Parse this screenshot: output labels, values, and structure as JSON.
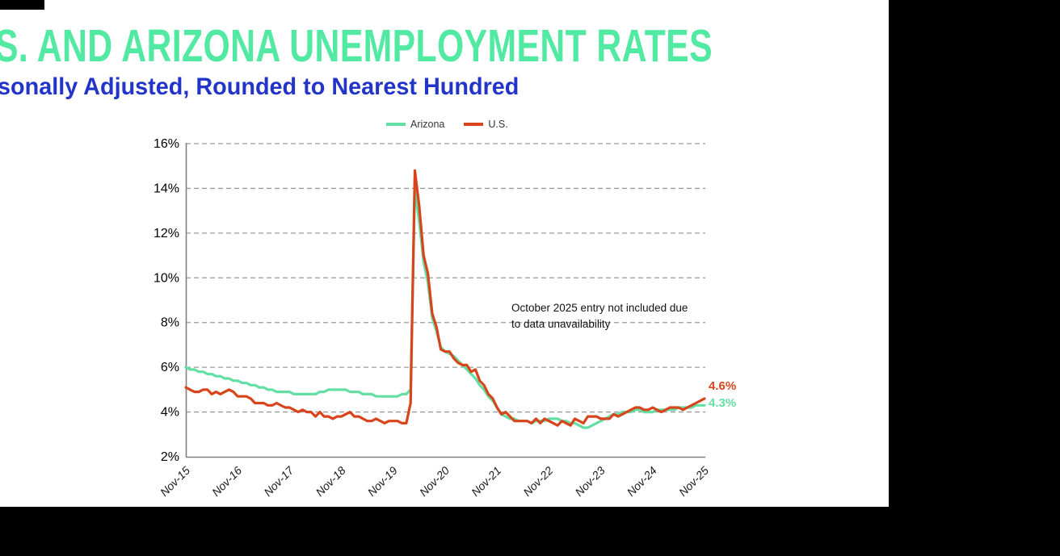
{
  "page": {
    "background": "#000000",
    "content_background": "#ffffff"
  },
  "header": {
    "title": "S. AND ARIZONA UNEMPLOYMENT RATES",
    "title_color": "#52e9a2",
    "subtitle": "sonally Adjusted, Rounded to Nearest Hundred",
    "subtitle_color": "#2334c8"
  },
  "legend": {
    "items": [
      {
        "label": "Arizona",
        "color": "#64dfa4"
      },
      {
        "label": "U.S.",
        "color": "#d8451c"
      }
    ]
  },
  "annotation": {
    "line1": "October 2025 entry not included due",
    "line2": "to data unavailability"
  },
  "chart_data": {
    "type": "line",
    "title": "S. AND ARIZONA UNEMPLOYMENT RATES",
    "subtitle": "sonally Adjusted, Rounded to Nearest Hundred",
    "x_unit": "months since Nov-2015 (monthly values; Oct-2025 is null / not included)",
    "x_tick_labels": [
      "Nov-15",
      "Nov-16",
      "Nov-17",
      "Nov-18",
      "Nov-19",
      "Nov-20",
      "Nov-21",
      "Nov-22",
      "Nov-23",
      "Nov-24",
      "Nov-25"
    ],
    "x_tick_months": [
      0,
      12,
      24,
      36,
      48,
      60,
      72,
      84,
      96,
      108,
      120
    ],
    "ylim": [
      2,
      16
    ],
    "y_ticks": [
      2,
      4,
      6,
      8,
      10,
      12,
      14,
      16
    ],
    "y_tick_suffix": "%",
    "grid": "horizontal-dashed",
    "legend_position": "top-center",
    "annotation": "October 2025 entry not included due to data unavailability",
    "series": [
      {
        "name": "Arizona",
        "color": "#64dfa4",
        "end_label": "4.3%",
        "values": [
          6.0,
          5.9,
          5.9,
          5.8,
          5.8,
          5.7,
          5.7,
          5.6,
          5.6,
          5.5,
          5.5,
          5.4,
          5.4,
          5.3,
          5.3,
          5.2,
          5.2,
          5.1,
          5.1,
          5.0,
          5.0,
          4.9,
          4.9,
          4.9,
          4.9,
          4.8,
          4.8,
          4.8,
          4.8,
          4.8,
          4.8,
          4.9,
          4.9,
          5.0,
          5.0,
          5.0,
          5.0,
          5.0,
          4.9,
          4.9,
          4.9,
          4.8,
          4.8,
          4.8,
          4.7,
          4.7,
          4.7,
          4.7,
          4.7,
          4.7,
          4.8,
          4.8,
          5.0,
          13.9,
          12.5,
          10.7,
          9.8,
          8.2,
          7.6,
          6.9,
          6.7,
          6.6,
          6.5,
          6.3,
          6.1,
          5.9,
          5.7,
          5.5,
          5.2,
          5.0,
          4.7,
          4.5,
          4.2,
          3.9,
          3.8,
          3.7,
          3.7,
          3.6,
          3.6,
          3.6,
          3.5,
          3.6,
          3.6,
          3.6,
          3.7,
          3.7,
          3.7,
          3.6,
          3.6,
          3.5,
          3.5,
          3.4,
          3.3,
          3.3,
          3.4,
          3.5,
          3.6,
          3.7,
          3.8,
          3.9,
          3.9,
          4.0,
          4.0,
          4.0,
          4.1,
          4.1,
          4.0,
          4.0,
          4.0,
          4.1,
          4.1,
          4.1,
          4.1,
          4.1,
          4.2,
          4.2,
          4.2,
          4.2,
          4.3,
          null,
          4.3
        ]
      },
      {
        "name": "U.S.",
        "color": "#d8451c",
        "end_label": "4.6%",
        "values": [
          5.1,
          5.0,
          4.9,
          4.9,
          5.0,
          5.0,
          4.8,
          4.9,
          4.8,
          4.9,
          5.0,
          4.9,
          4.7,
          4.7,
          4.7,
          4.6,
          4.4,
          4.4,
          4.4,
          4.3,
          4.3,
          4.4,
          4.3,
          4.2,
          4.2,
          4.1,
          4.0,
          4.1,
          4.0,
          4.0,
          3.8,
          4.0,
          3.8,
          3.8,
          3.7,
          3.8,
          3.8,
          3.9,
          4.0,
          3.8,
          3.8,
          3.7,
          3.6,
          3.6,
          3.7,
          3.6,
          3.5,
          3.6,
          3.6,
          3.6,
          3.5,
          3.5,
          4.4,
          14.8,
          13.2,
          11.0,
          10.2,
          8.4,
          7.8,
          6.8,
          6.7,
          6.7,
          6.4,
          6.2,
          6.1,
          6.1,
          5.8,
          5.9,
          5.4,
          5.2,
          4.8,
          4.6,
          4.2,
          3.9,
          4.0,
          3.8,
          3.6,
          3.6,
          3.6,
          3.6,
          3.5,
          3.7,
          3.5,
          3.7,
          3.6,
          3.5,
          3.4,
          3.6,
          3.5,
          3.4,
          3.7,
          3.6,
          3.5,
          3.8,
          3.8,
          3.8,
          3.7,
          3.7,
          3.7,
          3.9,
          3.8,
          3.9,
          4.0,
          4.1,
          4.2,
          4.2,
          4.1,
          4.1,
          4.2,
          4.1,
          4.0,
          4.1,
          4.2,
          4.2,
          4.2,
          4.1,
          4.2,
          4.3,
          4.4,
          null,
          4.6
        ]
      }
    ]
  }
}
